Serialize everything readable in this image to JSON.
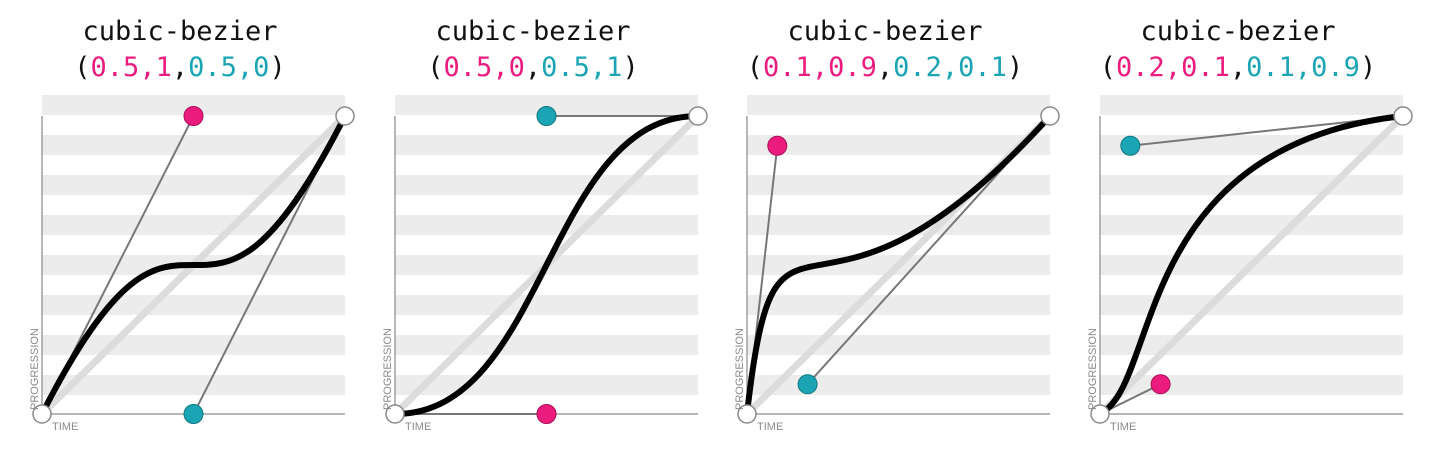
{
  "colors": {
    "p1": "#ec1c7e",
    "p2": "#1aa4b4",
    "curve": "#000000",
    "handle": "#777777",
    "stripe": "#ececec",
    "diagonal": "#dcdcdc"
  },
  "axis": {
    "x_label": "TIME",
    "y_label": "PROGRESSION"
  },
  "panels": [
    {
      "fn": "cubic-bezier",
      "p1": [
        "0.5",
        "1"
      ],
      "p2": [
        "0.5",
        "0"
      ]
    },
    {
      "fn": "cubic-bezier",
      "p1": [
        "0.5",
        "0"
      ],
      "p2": [
        "0.5",
        "1"
      ]
    },
    {
      "fn": "cubic-bezier",
      "p1": [
        "0.1",
        "0.9"
      ],
      "p2": [
        "0.2",
        "0.1"
      ]
    },
    {
      "fn": "cubic-bezier",
      "p1": [
        "0.2",
        "0.1"
      ],
      "p2": [
        "0.1",
        "0.9"
      ]
    }
  ]
}
